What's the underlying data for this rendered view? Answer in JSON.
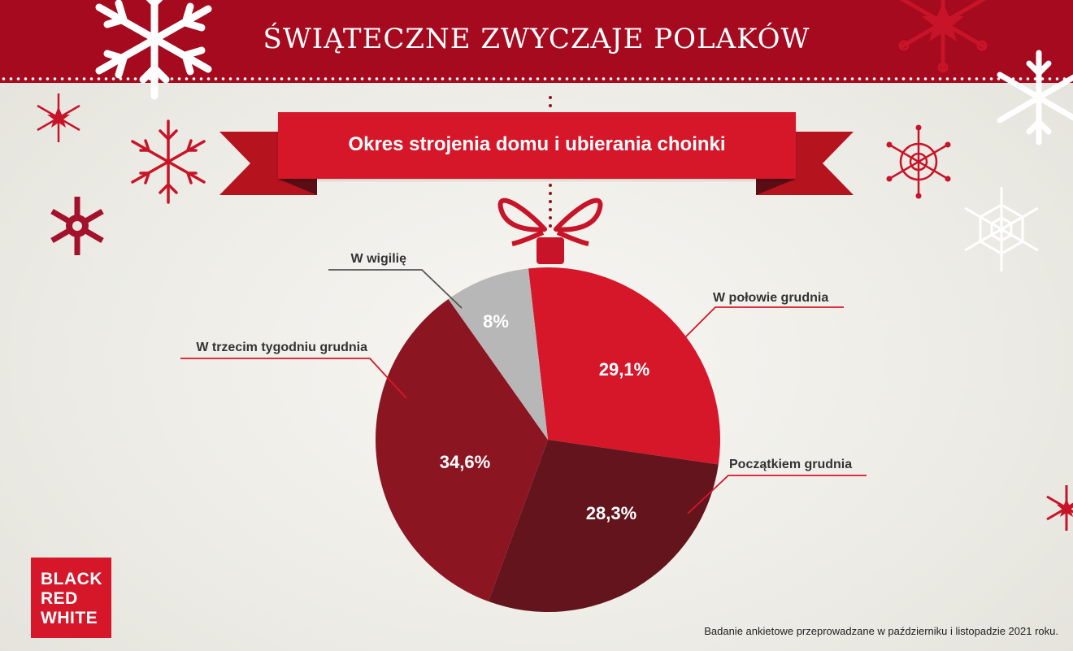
{
  "header": {
    "title": "ŚWIĄTECZNE ZWYCZAJE POLAKÓW"
  },
  "banner": {
    "title": "Okres strojenia domu i ubierania choinki"
  },
  "chart_data": {
    "type": "pie",
    "title": "Okres strojenia domu i ubierania choinki",
    "series": [
      {
        "slices": [
          {
            "label": "W połowie grudnia",
            "value": 29.1,
            "value_label": "29,1%",
            "color": "#d6172a"
          },
          {
            "label": "Początkiem grudnia",
            "value": 28.3,
            "value_label": "28,3%",
            "color": "#63141c"
          },
          {
            "label": "W trzecim tygodniu grudnia",
            "value": 34.6,
            "value_label": "34,6%",
            "color": "#8b1622"
          },
          {
            "label": "W wigilię",
            "value": 8,
            "value_label": "8%",
            "color": "#b7b7b7"
          }
        ]
      }
    ]
  },
  "footnote": "Badanie ankietowe przeprowadzane w październiku i listopadzie 2021 roku.",
  "logo": {
    "line1": "BLACK",
    "line2": "RED",
    "line3": "WHITE"
  }
}
